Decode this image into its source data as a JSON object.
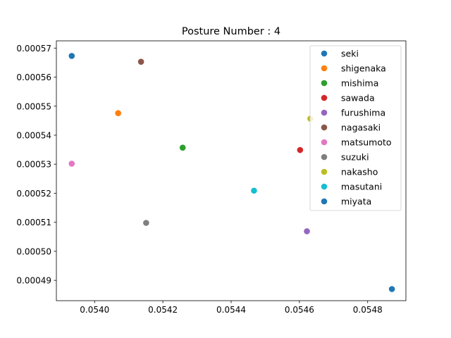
{
  "chart_data": {
    "type": "scatter",
    "title": "Posture Number : 4",
    "xlabel": "",
    "ylabel": "",
    "xlim": [
      0.053888,
      0.054912
    ],
    "ylim": [
      0.000483,
      0.0005725
    ],
    "x_ticks": [
      {
        "value": 0.054,
        "label": "0.0540"
      },
      {
        "value": 0.0542,
        "label": "0.0542"
      },
      {
        "value": 0.0544,
        "label": "0.0544"
      },
      {
        "value": 0.0546,
        "label": "0.0546"
      },
      {
        "value": 0.0548,
        "label": "0.0548"
      }
    ],
    "y_ticks": [
      {
        "value": 0.00049,
        "label": "0.00049"
      },
      {
        "value": 0.0005,
        "label": "0.00050"
      },
      {
        "value": 0.00051,
        "label": "0.00051"
      },
      {
        "value": 0.00052,
        "label": "0.00052"
      },
      {
        "value": 0.00053,
        "label": "0.00053"
      },
      {
        "value": 0.00054,
        "label": "0.00054"
      },
      {
        "value": 0.00055,
        "label": "0.00055"
      },
      {
        "value": 0.00056,
        "label": "0.00056"
      },
      {
        "value": 0.00057,
        "label": "0.00057"
      }
    ],
    "grid": false,
    "legend_position": "top-right",
    "series": [
      {
        "name": "seki",
        "color": "#1f77b4",
        "x": 0.053933,
        "y": 0.0005673
      },
      {
        "name": "shigenaka",
        "color": "#ff7f0e",
        "x": 0.054069,
        "y": 0.0005476
      },
      {
        "name": "mishima",
        "color": "#2ca02c",
        "x": 0.054258,
        "y": 0.0005357
      },
      {
        "name": "sawada",
        "color": "#d62728",
        "x": 0.054602,
        "y": 0.0005349
      },
      {
        "name": "furushima",
        "color": "#9467bd",
        "x": 0.054622,
        "y": 0.0005069
      },
      {
        "name": "nagasaki",
        "color": "#8c564b",
        "x": 0.054136,
        "y": 0.0005653
      },
      {
        "name": "matsumoto",
        "color": "#e377c2",
        "x": 0.053933,
        "y": 0.0005302
      },
      {
        "name": "suzuki",
        "color": "#7f7f7f",
        "x": 0.054151,
        "y": 0.0005098
      },
      {
        "name": "nakasho",
        "color": "#bcbd22",
        "x": 0.054632,
        "y": 0.0005457
      },
      {
        "name": "masutani",
        "color": "#17becf",
        "x": 0.054467,
        "y": 0.0005209
      },
      {
        "name": "miyata",
        "color": "#1f77b4",
        "x": 0.054871,
        "y": 0.000487
      }
    ]
  }
}
